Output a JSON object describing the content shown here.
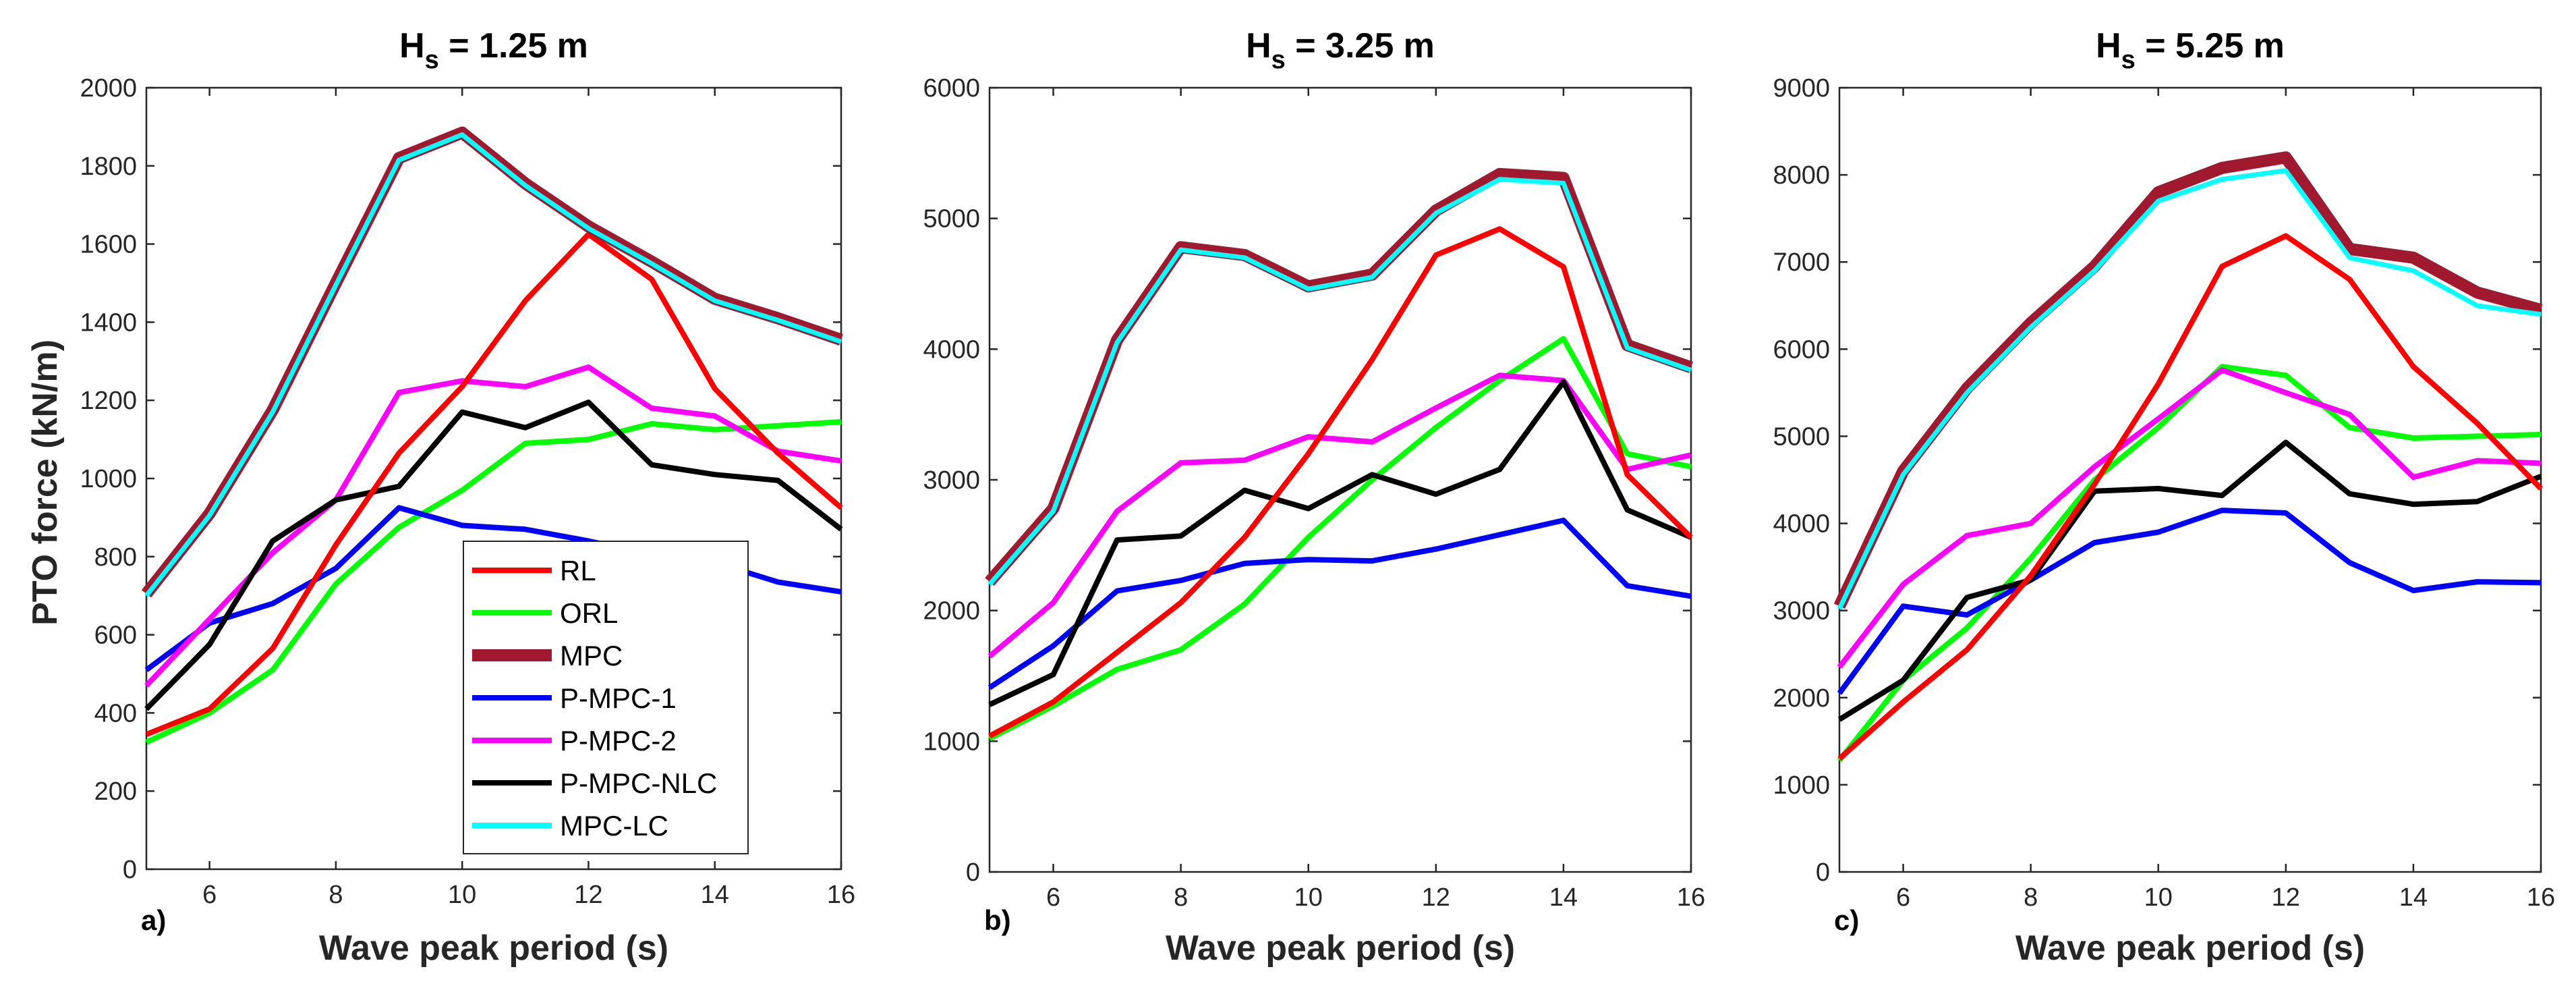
{
  "figure": {
    "ylabel": "PTO force (kN/m)",
    "xlabel": "Wave peak period (s)"
  },
  "legend": {
    "entries": [
      {
        "name": "RL",
        "color": "#ff0000"
      },
      {
        "name": "ORL",
        "color": "#00ff00"
      },
      {
        "name": "MPC",
        "color": "#a0192e"
      },
      {
        "name": "P-MPC-1",
        "color": "#0000ff"
      },
      {
        "name": "P-MPC-2",
        "color": "#ff00ff"
      },
      {
        "name": "P-MPC-NLC",
        "color": "#000000"
      },
      {
        "name": "MPC-LC",
        "color": "#00ffff"
      }
    ]
  },
  "chart_data": [
    {
      "type": "line",
      "panel_label": "a)",
      "title_main": "H",
      "title_sub": "s",
      "title_rest": " = 1.25 m",
      "xlabel": "Wave peak period (s)",
      "ylabel": "PTO force (kN/m)",
      "xlim": [
        5,
        16
      ],
      "ylim": [
        0,
        2000
      ],
      "xticks": [
        6,
        8,
        10,
        12,
        14,
        16
      ],
      "yticks": [
        0,
        200,
        400,
        600,
        800,
        1000,
        1200,
        1400,
        1600,
        1800,
        2000
      ],
      "x": [
        5,
        6,
        7,
        8,
        9,
        10,
        11,
        12,
        13,
        14,
        15,
        16
      ],
      "series": [
        {
          "name": "RL",
          "values": [
            345,
            410,
            565,
            830,
            1065,
            1235,
            1455,
            1625,
            1510,
            1230,
            1065,
            925
          ]
        },
        {
          "name": "ORL",
          "values": [
            325,
            400,
            510,
            730,
            875,
            970,
            1090,
            1100,
            1140,
            1125,
            1135,
            1145
          ]
        },
        {
          "name": "MPC",
          "values": [
            705,
            910,
            1175,
            1500,
            1820,
            1885,
            1755,
            1645,
            1555,
            1460,
            1410,
            1355
          ]
        },
        {
          "name": "P-MPC-1",
          "values": [
            510,
            630,
            680,
            770,
            925,
            880,
            870,
            840,
            805,
            785,
            735,
            710
          ]
        },
        {
          "name": "P-MPC-2",
          "values": [
            470,
            640,
            810,
            945,
            1220,
            1250,
            1235,
            1285,
            1180,
            1160,
            1070,
            1045
          ]
        },
        {
          "name": "P-MPC-NLC",
          "values": [
            410,
            575,
            840,
            945,
            980,
            1170,
            1130,
            1195,
            1035,
            1010,
            995,
            870
          ]
        },
        {
          "name": "MPC-LC",
          "values": [
            700,
            905,
            1170,
            1495,
            1815,
            1880,
            1750,
            1640,
            1550,
            1455,
            1405,
            1350
          ]
        }
      ]
    },
    {
      "type": "line",
      "panel_label": "b)",
      "title_main": "H",
      "title_sub": "s",
      "title_rest": " = 3.25 m",
      "xlabel": "Wave peak period (s)",
      "ylabel": "",
      "xlim": [
        5,
        16
      ],
      "ylim": [
        0,
        6000
      ],
      "xticks": [
        6,
        8,
        10,
        12,
        14,
        16
      ],
      "yticks": [
        0,
        1000,
        2000,
        3000,
        4000,
        5000,
        6000
      ],
      "x": [
        5,
        6,
        7,
        8,
        9,
        10,
        11,
        12,
        13,
        14,
        15,
        16
      ],
      "series": [
        {
          "name": "RL",
          "values": [
            1040,
            1300,
            1680,
            2060,
            2560,
            3200,
            3920,
            4720,
            4920,
            4630,
            3040,
            2560
          ]
        },
        {
          "name": "ORL",
          "values": [
            1020,
            1270,
            1550,
            1700,
            2050,
            2560,
            3000,
            3400,
            3760,
            4080,
            3200,
            3100
          ]
        },
        {
          "name": "MPC",
          "values": [
            2220,
            2780,
            4070,
            4780,
            4720,
            4480,
            4570,
            5060,
            5340,
            5310,
            4030,
            3860
          ]
        },
        {
          "name": "P-MPC-1",
          "values": [
            1410,
            1730,
            2150,
            2230,
            2360,
            2390,
            2380,
            2470,
            2580,
            2690,
            2190,
            2110
          ]
        },
        {
          "name": "P-MPC-2",
          "values": [
            1650,
            2060,
            2760,
            3130,
            3150,
            3330,
            3290,
            3550,
            3800,
            3760,
            3080,
            3190
          ]
        },
        {
          "name": "P-MPC-NLC",
          "values": [
            1280,
            1510,
            2540,
            2570,
            2920,
            2780,
            3040,
            2890,
            3080,
            3750,
            2770,
            2560
          ]
        },
        {
          "name": "MPC-LC",
          "values": [
            2200,
            2760,
            4050,
            4760,
            4700,
            4460,
            4550,
            5040,
            5300,
            5270,
            4010,
            3840
          ]
        }
      ]
    },
    {
      "type": "line",
      "panel_label": "c)",
      "title_main": "H",
      "title_sub": "s",
      "title_rest": " = 5.25 m",
      "xlabel": "Wave peak period (s)",
      "ylabel": "",
      "xlim": [
        5,
        16
      ],
      "ylim": [
        0,
        9000
      ],
      "xticks": [
        6,
        8,
        10,
        12,
        14,
        16
      ],
      "yticks": [
        0,
        1000,
        2000,
        3000,
        4000,
        5000,
        6000,
        7000,
        8000,
        9000
      ],
      "x": [
        5,
        6,
        7,
        8,
        9,
        10,
        11,
        12,
        13,
        14,
        15,
        16
      ],
      "series": [
        {
          "name": "RL",
          "values": [
            1300,
            1950,
            2550,
            3400,
            4450,
            5600,
            6950,
            7300,
            6800,
            5800,
            5150,
            4400
          ]
        },
        {
          "name": "ORL",
          "values": [
            1280,
            2200,
            2800,
            3600,
            4500,
            5100,
            5800,
            5700,
            5100,
            4980,
            5000,
            5020
          ]
        },
        {
          "name": "MPC",
          "values": [
            3050,
            4600,
            5550,
            6300,
            6950,
            7800,
            8080,
            8200,
            7150,
            7050,
            6650,
            6450
          ]
        },
        {
          "name": "P-MPC-1",
          "values": [
            2050,
            3050,
            2950,
            3350,
            3780,
            3900,
            4150,
            4120,
            3550,
            3230,
            3330,
            3320
          ]
        },
        {
          "name": "P-MPC-2",
          "values": [
            2350,
            3300,
            3860,
            4000,
            4650,
            5200,
            5760,
            5500,
            5250,
            4530,
            4720,
            4690
          ]
        },
        {
          "name": "P-MPC-NLC",
          "values": [
            1750,
            2200,
            3150,
            3350,
            4370,
            4400,
            4320,
            4930,
            4340,
            4220,
            4250,
            4540
          ]
        },
        {
          "name": "MPC-LC",
          "values": [
            3020,
            4560,
            5500,
            6250,
            6900,
            7700,
            7950,
            8050,
            7050,
            6900,
            6500,
            6400
          ]
        }
      ]
    }
  ]
}
